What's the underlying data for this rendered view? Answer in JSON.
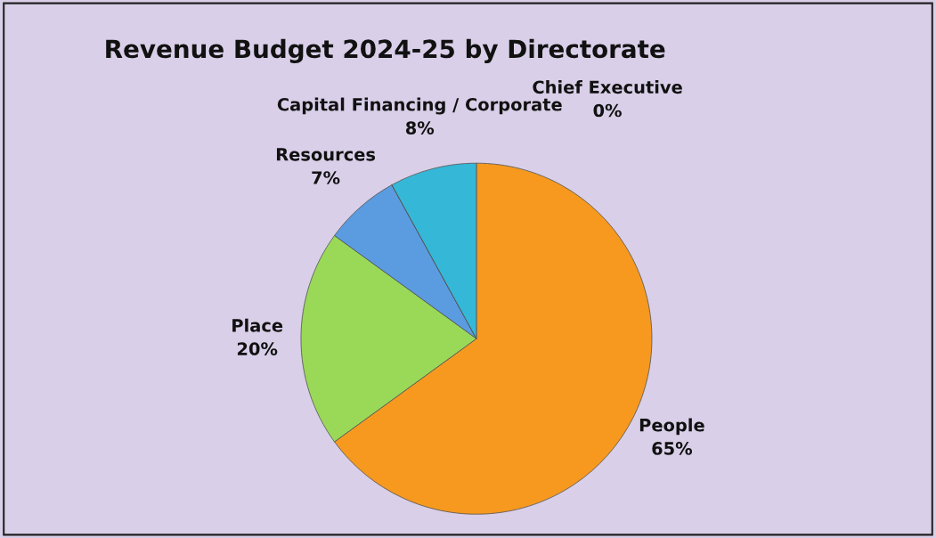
{
  "chart_data": {
    "type": "pie",
    "title": "Revenue Budget 2024-25 by Directorate",
    "categories": [
      "People",
      "Place",
      "Resources",
      "Chief Executive",
      "Capital Financing / Corporate"
    ],
    "values": [
      65,
      20,
      7,
      0,
      8
    ],
    "value_labels": [
      "65%",
      "20%",
      "7%",
      "0%",
      "8%"
    ],
    "colors": [
      "#f7991f",
      "#9ad957",
      "#5b9be0",
      "#6a3d8c",
      "#35b8d8"
    ]
  }
}
